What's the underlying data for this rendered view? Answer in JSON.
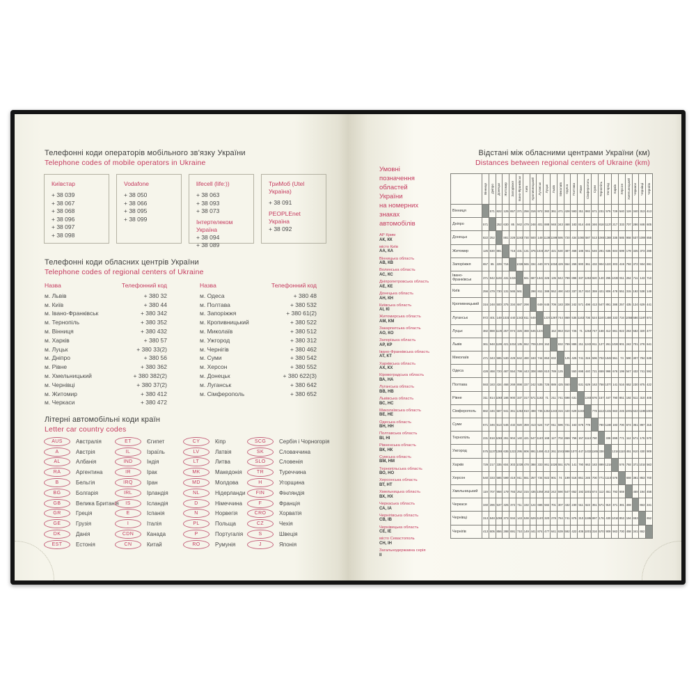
{
  "colors": {
    "accent": "#c43a5e",
    "page_cream": "#f6f5eb",
    "cover_black": "#141414"
  },
  "left_page": {
    "mobile_section": {
      "title_uk": "Телефонні коди операторів мобільного зв'язку України",
      "title_en": "Telephone codes of mobile operators in Ukraine",
      "boxes": [
        {
          "groups": [
            {
              "label": "Київстар",
              "codes": [
                "+ 38 039",
                "+ 38 067",
                "+ 38 068",
                "+ 38 096",
                "+ 38 097",
                "+ 38 098"
              ]
            }
          ]
        },
        {
          "groups": [
            {
              "label": "Vodafone",
              "codes": [
                "+ 38 050",
                "+ 38 066",
                "+ 38 095",
                "+ 38 099"
              ]
            }
          ]
        },
        {
          "groups": [
            {
              "label": "lifecell (life:))",
              "codes": [
                "+ 38 063",
                "+ 38 093",
                "+ 38 073"
              ]
            },
            {
              "label": "Інтертелеком Україна",
              "codes": [
                "+ 38 094",
                "+ 38 089"
              ]
            }
          ]
        },
        {
          "groups": [
            {
              "label": "ТриМоб (Utel Україна)",
              "codes": [
                "+ 38 091"
              ]
            },
            {
              "label": "PEOPLEnet Україна",
              "codes": [
                "+ 38 092"
              ]
            }
          ]
        }
      ]
    },
    "regional_section": {
      "title_uk": "Телефонні коди обласних центрів України",
      "title_en": "Telephone codes of regional centers of Ukraine",
      "name_header": "Назва",
      "code_header": "Телефонний код",
      "left_rows": [
        {
          "name": "м. Львів",
          "code": "+ 380 32"
        },
        {
          "name": "м. Київ",
          "code": "+ 380 44"
        },
        {
          "name": "м. Івано-Франківськ",
          "code": "+ 380 342"
        },
        {
          "name": "м. Тернопіль",
          "code": "+ 380 352"
        },
        {
          "name": "м. Вінниця",
          "code": "+ 380 432"
        },
        {
          "name": "м. Харків",
          "code": "+ 380 57"
        },
        {
          "name": "м. Луцьк",
          "code": "+ 380 33(2)"
        },
        {
          "name": "м. Дніпро",
          "code": "+ 380 56"
        },
        {
          "name": "м. Рівне",
          "code": "+ 380 362"
        },
        {
          "name": "м. Хмельницький",
          "code": "+ 380 382(2)"
        },
        {
          "name": "м. Чернівці",
          "code": "+ 380 37(2)"
        },
        {
          "name": "м. Житомир",
          "code": "+ 380 412"
        },
        {
          "name": "м. Черкаси",
          "code": "+ 380 472"
        }
      ],
      "right_rows": [
        {
          "name": "м. Одеса",
          "code": "+ 380 48"
        },
        {
          "name": "м. Полтава",
          "code": "+ 380 532"
        },
        {
          "name": "м. Запоріжжя",
          "code": "+ 380 61(2)"
        },
        {
          "name": "м. Кропивницький",
          "code": "+ 380 522"
        },
        {
          "name": "м. Миколаїв",
          "code": "+ 380 512"
        },
        {
          "name": "м. Ужгород",
          "code": "+ 380 312"
        },
        {
          "name": "м. Чернігів",
          "code": "+ 380 462"
        },
        {
          "name": "м. Суми",
          "code": "+ 380 542"
        },
        {
          "name": "м. Херсон",
          "code": "+ 380 552"
        },
        {
          "name": "м. Донецьк",
          "code": "+ 380 622(3)"
        },
        {
          "name": "м. Луганськ",
          "code": "+ 380 642"
        },
        {
          "name": "м. Сімферополь",
          "code": "+ 380 652"
        }
      ]
    },
    "car_codes_section": {
      "title_uk": "Літерні автомобільні коди країн",
      "title_en": "Letter car country codes",
      "columns": [
        [
          {
            "code": "AUS",
            "country": "Австралія"
          },
          {
            "code": "A",
            "country": "Австрія"
          },
          {
            "code": "AL",
            "country": "Албанія"
          },
          {
            "code": "RA",
            "country": "Аргентина"
          },
          {
            "code": "B",
            "country": "Бельгія"
          },
          {
            "code": "BG",
            "country": "Болгарія"
          },
          {
            "code": "GB",
            "country": "Велика Британія"
          },
          {
            "code": "GR",
            "country": "Греція"
          },
          {
            "code": "GE",
            "country": "Грузія"
          },
          {
            "code": "DK",
            "country": "Данія"
          },
          {
            "code": "EST",
            "country": "Естонія"
          }
        ],
        [
          {
            "code": "ET",
            "country": "Єгипет"
          },
          {
            "code": "IL",
            "country": "Ізраїль"
          },
          {
            "code": "IND",
            "country": "Індія"
          },
          {
            "code": "IR",
            "country": "Ірак"
          },
          {
            "code": "IRQ",
            "country": "Іран"
          },
          {
            "code": "IRL",
            "country": "Ірландія"
          },
          {
            "code": "IS",
            "country": "Ісландія"
          },
          {
            "code": "E",
            "country": "Іспанія"
          },
          {
            "code": "I",
            "country": "Італія"
          },
          {
            "code": "CDN",
            "country": "Канада"
          },
          {
            "code": "CN",
            "country": "Китай"
          }
        ],
        [
          {
            "code": "CY",
            "country": "Кіпр"
          },
          {
            "code": "LV",
            "country": "Латвія"
          },
          {
            "code": "LT",
            "country": "Литва"
          },
          {
            "code": "MK",
            "country": "Македонія"
          },
          {
            "code": "MD",
            "country": "Молдова"
          },
          {
            "code": "NL",
            "country": "Нідерланди"
          },
          {
            "code": "D",
            "country": "Німеччина"
          },
          {
            "code": "N",
            "country": "Норвегія"
          },
          {
            "code": "PL",
            "country": "Польща"
          },
          {
            "code": "P",
            "country": "Португалія"
          },
          {
            "code": "RO",
            "country": "Румунія"
          }
        ],
        [
          {
            "code": "SCG",
            "country": "Сербія і Чорногорія"
          },
          {
            "code": "SK",
            "country": "Словаччина"
          },
          {
            "code": "SLO",
            "country": "Словенія"
          },
          {
            "code": "TR",
            "country": "Туреччина"
          },
          {
            "code": "H",
            "country": "Угорщина"
          },
          {
            "code": "FIN",
            "country": "Фінляндія"
          },
          {
            "code": "F",
            "country": "Франція"
          },
          {
            "code": "CRO",
            "country": "Хорватія"
          },
          {
            "code": "CZ",
            "country": "Чехія"
          },
          {
            "code": "S",
            "country": "Швеція"
          },
          {
            "code": "J",
            "country": "Японія"
          }
        ]
      ]
    }
  },
  "right_page": {
    "title_uk": "Відстані між обласними центрами України (км)",
    "title_en": "Distances between regional centers of Ukraine (km)",
    "legend": {
      "title_lines": [
        "Умовні",
        "позначення",
        "областей",
        "України",
        "на номерних",
        "знаках",
        "автомобілів"
      ],
      "entries": [
        {
          "region": "АР Крим",
          "codes": "АК, КК"
        },
        {
          "region": "місто Київ",
          "codes": "АА, КА"
        },
        {
          "region": "Вінницька область",
          "codes": "АВ, КВ"
        },
        {
          "region": "Волинська область",
          "codes": "АС, КС"
        },
        {
          "region": "Дніпропетровська область",
          "codes": "АЕ, КЕ"
        },
        {
          "region": "Донецька область",
          "codes": "АН, КН"
        },
        {
          "region": "Київська область",
          "codes": "АІ, КІ"
        },
        {
          "region": "Житомирська область",
          "codes": "АМ, КМ"
        },
        {
          "region": "Закарпатська область",
          "codes": "АО, КО"
        },
        {
          "region": "Запорізька область",
          "codes": "АР, КР"
        },
        {
          "region": "Івано-Франківська область",
          "codes": "АТ, КТ"
        },
        {
          "region": "Харківська область",
          "codes": "АХ, КХ"
        },
        {
          "region": "Кіровоградська область",
          "codes": "ВА, НА"
        },
        {
          "region": "Луганська область",
          "codes": "ВВ, НВ"
        },
        {
          "region": "Львівська область",
          "codes": "ВС, НС"
        },
        {
          "region": "Миколаївська область",
          "codes": "ВЕ, НЕ"
        },
        {
          "region": "Одеська область",
          "codes": "ВН, НН"
        },
        {
          "region": "Полтавська область",
          "codes": "ВІ, НІ"
        },
        {
          "region": "Рівненська область",
          "codes": "ВК, НК"
        },
        {
          "region": "Сумська область",
          "codes": "ВМ, НМ"
        },
        {
          "region": "Тернопільська область",
          "codes": "ВО, НО"
        },
        {
          "region": "Херсонська область",
          "codes": "ВТ, НТ"
        },
        {
          "region": "Хмельницька область",
          "codes": "ВХ, НХ"
        },
        {
          "region": "Черкаська область",
          "codes": "СА, ІА"
        },
        {
          "region": "Чернігівська область",
          "codes": "СВ, ІВ"
        },
        {
          "region": "Чернівецька область",
          "codes": "СЕ, ІЕ"
        },
        {
          "region": "місто Севастополь",
          "codes": "СН, ІН"
        },
        {
          "region": "Загальнодержавна серія",
          "codes": "ІІ"
        }
      ]
    },
    "distance_table": {
      "cities": [
        "Вінниця",
        "Дніпро",
        "Донецьк",
        "Житомир",
        "Запоріжжя",
        "Івано-Франківськ",
        "Київ",
        "Кропивницький",
        "Луганськ",
        "Луцьк",
        "Львів",
        "Миколаїв",
        "Одеса",
        "Полтава",
        "Рівне",
        "Сімферополь",
        "Суми",
        "Тернопіль",
        "Ужгород",
        "Харків",
        "Херсон",
        "Хмельницький",
        "Черкаси",
        "Чернівці",
        "Чернігів"
      ],
      "triangle": [
        [
          571
        ],
        [
          822,
          252
        ],
        [
          125,
          630,
          881
        ],
        [
          657,
          85,
          229,
          716
        ],
        [
          371,
          942,
          1193,
          431,
          1028
        ],
        [
          256,
          479,
          730,
          131,
          565,
          561
        ],
        [
          316,
          248,
          500,
          375,
          334,
          687,
          298
        ],
        [
          972,
          401,
          149,
          1031,
          440,
          1343,
          811,
          649
        ],
        [
          382,
          888,
          1139,
          257,
          974,
          326,
          388,
          645,
          1237
        ],
        [
          361,
          948,
          1199,
          421,
          1034,
          135,
          552,
          709,
          1297,
          152
        ],
        [
          471,
          343,
          595,
          530,
          429,
          842,
          490,
          183,
          744,
          853,
          832
        ],
        [
          428,
          468,
          720,
          487,
          554,
          799,
          443,
          308,
          869,
          810,
          789,
          125
        ],
        [
          593,
          183,
          434,
          468,
          269,
          898,
          337,
          242,
          535,
          725,
          889,
          425,
          550
        ],
        [
          311,
          814,
          1065,
          186,
          900,
          337,
          317,
          571,
          1163,
          71,
          211,
          741,
          698,
          631
        ],
        [
          882,
          446,
          587,
          941,
          361,
          1253,
          810,
          498,
          736,
          1264,
          1243,
          315,
          440,
          629,
          1193
        ],
        [
          671,
          346,
          513,
          546,
          432,
          920,
          359,
          413,
          524,
          747,
          911,
          596,
          721,
          163,
          676,
          778
        ],
        [
          231,
          818,
          1069,
          291,
          904,
          140,
          421,
          547,
          1167,
          168,
          127,
          702,
          659,
          758,
          157,
          1113,
          780
        ],
        [
          575,
          1137,
          1388,
          635,
          1223,
          295,
          806,
          891,
          1486,
          412,
          261,
          1041,
          998,
          1077,
          447,
          1432,
          1165,
          338
        ],
        [
          729,
          217,
          335,
          604,
          303,
          1039,
          478,
          388,
          333,
          861,
          1026,
          551,
          676,
          141,
          790,
          663,
          183,
          899,
          1218
        ],
        [
          540,
          333,
          585,
          599,
          419,
          911,
          551,
          257,
          734,
          922,
          901,
          74,
          199,
          516,
          851,
          245,
          700,
          771,
          1110,
          576
        ],
        [
          119,
          707,
          958,
          179,
          793,
          252,
          315,
          435,
          1056,
          263,
          242,
          590,
          547,
          652,
          192,
          1001,
          674,
          112,
          451,
          793,
          659
        ],
        [
          340,
          286,
          537,
          325,
          372,
          711,
          192,
          124,
          686,
          582,
          701,
          307,
          432,
          230,
          511,
          622,
          351,
          571,
          910,
          371,
          381,
          459
        ],
        [
          313,
          848,
          1099,
          373,
          934,
          143,
          538,
          629,
          1197,
          320,
          278,
          784,
          741,
          875,
          310,
          1195,
          897,
          176,
          430,
          1016,
          853,
          194,
          653
        ],
        [
          413,
          605,
          856,
          288,
          691,
          710,
          149,
          441,
          874,
          477,
          641,
          639,
          592,
          422,
          406,
          1001,
          316,
          570,
          909,
          563,
          700,
          458,
          341,
          652
        ]
      ]
    }
  }
}
